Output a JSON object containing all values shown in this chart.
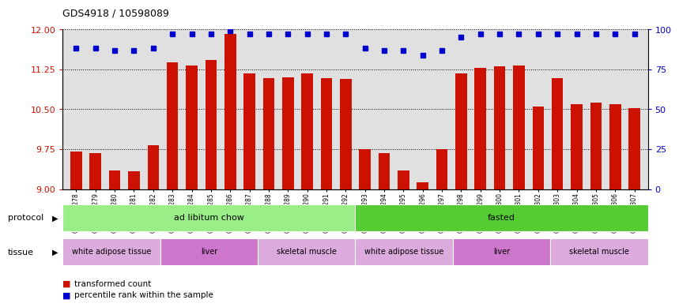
{
  "title": "GDS4918 / 10598089",
  "samples": [
    "GSM1131278",
    "GSM1131279",
    "GSM1131280",
    "GSM1131281",
    "GSM1131282",
    "GSM1131283",
    "GSM1131284",
    "GSM1131285",
    "GSM1131286",
    "GSM1131287",
    "GSM1131288",
    "GSM1131289",
    "GSM1131290",
    "GSM1131291",
    "GSM1131292",
    "GSM1131293",
    "GSM1131294",
    "GSM1131295",
    "GSM1131296",
    "GSM1131297",
    "GSM1131298",
    "GSM1131299",
    "GSM1131300",
    "GSM1131301",
    "GSM1131302",
    "GSM1131303",
    "GSM1131304",
    "GSM1131305",
    "GSM1131306",
    "GSM1131307"
  ],
  "bar_values": [
    9.7,
    9.68,
    9.35,
    9.33,
    9.83,
    11.38,
    11.32,
    11.42,
    11.92,
    11.17,
    11.08,
    11.1,
    11.17,
    11.08,
    11.07,
    9.75,
    9.68,
    9.35,
    9.12,
    9.75,
    11.17,
    11.27,
    11.3,
    11.32,
    10.55,
    11.08,
    10.6,
    10.62,
    10.6,
    10.52
  ],
  "percentile_values": [
    88,
    88,
    87,
    87,
    88,
    97,
    97,
    97,
    99,
    97,
    97,
    97,
    97,
    97,
    97,
    88,
    87,
    87,
    84,
    87,
    95,
    97,
    97,
    97,
    97,
    97,
    97,
    97,
    97,
    97
  ],
  "ylim_left": [
    9.0,
    12.0
  ],
  "ylim_right": [
    0,
    100
  ],
  "yticks_left": [
    9.0,
    9.75,
    10.5,
    11.25,
    12.0
  ],
  "yticks_right": [
    0,
    25,
    50,
    75,
    100
  ],
  "bar_color": "#cc1100",
  "dot_color": "#0000cc",
  "bg_color": "#e0e0e0",
  "protocol_groups": [
    {
      "label": "ad libitum chow",
      "start": 0,
      "end": 15,
      "color": "#99ee88"
    },
    {
      "label": "fasted",
      "start": 15,
      "end": 30,
      "color": "#55cc33"
    }
  ],
  "tissue_groups": [
    {
      "label": "white adipose tissue",
      "start": 0,
      "end": 5,
      "color": "#ddaadd"
    },
    {
      "label": "liver",
      "start": 5,
      "end": 10,
      "color": "#cc77cc"
    },
    {
      "label": "skeletal muscle",
      "start": 10,
      "end": 15,
      "color": "#ddaadd"
    },
    {
      "label": "white adipose tissue",
      "start": 15,
      "end": 20,
      "color": "#ddaadd"
    },
    {
      "label": "liver",
      "start": 20,
      "end": 25,
      "color": "#cc77cc"
    },
    {
      "label": "skeletal muscle",
      "start": 25,
      "end": 30,
      "color": "#ddaadd"
    }
  ],
  "legend_items": [
    {
      "label": "transformed count",
      "color": "#cc1100"
    },
    {
      "label": "percentile rank within the sample",
      "color": "#0000cc"
    }
  ]
}
